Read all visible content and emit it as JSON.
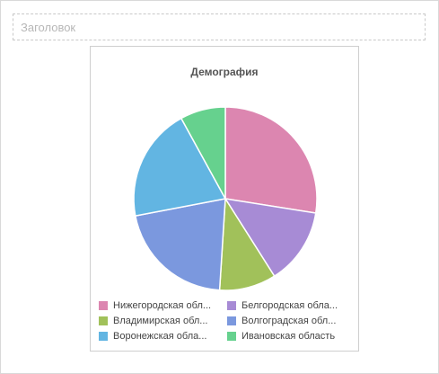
{
  "header": {
    "title_placeholder": "Заголовок"
  },
  "chart_data": {
    "type": "pie",
    "title": "Демография",
    "slices": [
      {
        "name": "Нижегородская область",
        "value": 27.5,
        "color": "#dc86b0"
      },
      {
        "name": "Белгородская область",
        "value": 13.5,
        "color": "#a78bd5"
      },
      {
        "name": "Владимирская область",
        "value": 10.0,
        "color": "#a1c15a"
      },
      {
        "name": "Волгоградская область",
        "value": 21.0,
        "color": "#7b98de"
      },
      {
        "name": "Воронежская область",
        "value": 20.0,
        "color": "#62b5e2"
      },
      {
        "name": "Ивановская область",
        "value": 8.0,
        "color": "#66d18e"
      }
    ],
    "legend_placement": "bottom",
    "legend_labels_shown": [
      "Нижегородская обл...",
      "Белгородская обла...",
      "Владимирская обл...",
      "Волгоградская обл...",
      "Воронежская обла...",
      "Ивановская область"
    ]
  }
}
